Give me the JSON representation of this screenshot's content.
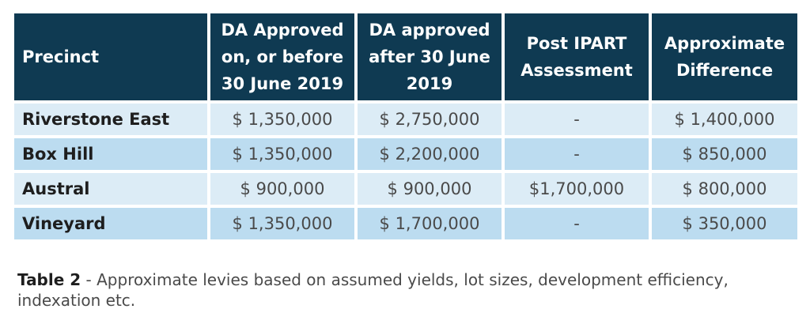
{
  "table": {
    "headers": [
      "Precinct",
      "DA Approved on, or before 30 June 2019",
      "DA approved after 30 June 2019",
      "Post IPART Assessment",
      "Approximate Difference"
    ],
    "rows": [
      [
        "Riverstone East",
        "$ 1,350,000",
        "$ 2,750,000",
        "-",
        "$ 1,400,000"
      ],
      [
        "Box Hill",
        "$ 1,350,000",
        "$ 2,200,000",
        "-",
        "$ 850,000"
      ],
      [
        "Austral",
        "$ 900,000",
        "$ 900,000",
        "$1,700,000",
        "$ 800,000"
      ],
      [
        "Vineyard",
        "$ 1,350,000",
        "$ 1,700,000",
        "-",
        "$ 350,000"
      ]
    ]
  },
  "caption": {
    "label": "Table 2",
    "text": " - Approximate levies based on assumed yields, lot sizes, development efficiency, indexation etc."
  }
}
